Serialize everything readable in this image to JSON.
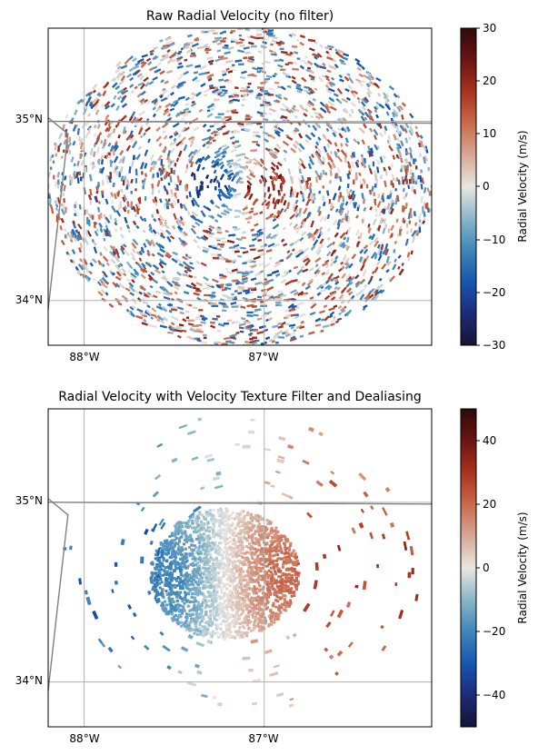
{
  "panels": [
    {
      "title": "Raw Radial Velocity (no filter)",
      "x_ticks": [
        "88°W",
        "87°W"
      ],
      "y_ticks": [
        "35°N",
        "34°N"
      ],
      "lon_range": [
        -88.2,
        -86.07
      ],
      "lat_range": [
        33.75,
        35.52
      ],
      "gridlines": {
        "lon": [
          -88,
          -87
        ],
        "lat": [
          35,
          34
        ]
      },
      "colorbar": {
        "label": "Radial Velocity (m/s)",
        "vmin": -30,
        "vmax": 30,
        "ticks": [
          "30",
          "20",
          "10",
          "0",
          "−10",
          "−20",
          "−30"
        ]
      },
      "field": "noisy"
    },
    {
      "title": "Radial Velocity with Velocity Texture Filter and Dealiasing",
      "x_ticks": [
        "88°W",
        "87°W"
      ],
      "y_ticks": [
        "35°N",
        "34°N"
      ],
      "lon_range": [
        -88.2,
        -86.07
      ],
      "lat_range": [
        33.75,
        35.52
      ],
      "gridlines": {
        "lon": [
          -88,
          -87
        ],
        "lat": [
          35,
          34
        ]
      },
      "colorbar": {
        "label": "Radial Velocity (m/s)",
        "vmin": -50,
        "vmax": 50,
        "ticks": [
          "40",
          "20",
          "0",
          "−20",
          "−40"
        ]
      },
      "field": "filtered"
    }
  ],
  "chart_data": [
    {
      "type": "heatmap",
      "title": "Raw Radial Velocity (no filter)",
      "xlabel": "",
      "ylabel": "",
      "x_tick_labels": [
        "88°W",
        "87°W"
      ],
      "y_tick_labels": [
        "35°N",
        "34°N"
      ],
      "colorbar_label": "Radial Velocity (m/s)",
      "clim": [
        -30,
        30
      ],
      "grid": true
    },
    {
      "type": "heatmap",
      "title": "Radial Velocity with Velocity Texture Filter and Dealiasing",
      "xlabel": "",
      "ylabel": "",
      "x_tick_labels": [
        "88°W",
        "87°W"
      ],
      "y_tick_labels": [
        "35°N",
        "34°N"
      ],
      "colorbar_label": "Radial Velocity (m/s)",
      "clim": [
        -50,
        50
      ],
      "grid": true
    }
  ],
  "colors": {
    "cmap": [
      "#141432",
      "#1f2a78",
      "#1756b0",
      "#3f86b8",
      "#8ab6c8",
      "#e8e6e2",
      "#d7a896",
      "#c96a4c",
      "#a8311f",
      "#6b1414",
      "#2e0a0a"
    ],
    "border_line": "#808080",
    "grid": "#b0b0b0"
  }
}
